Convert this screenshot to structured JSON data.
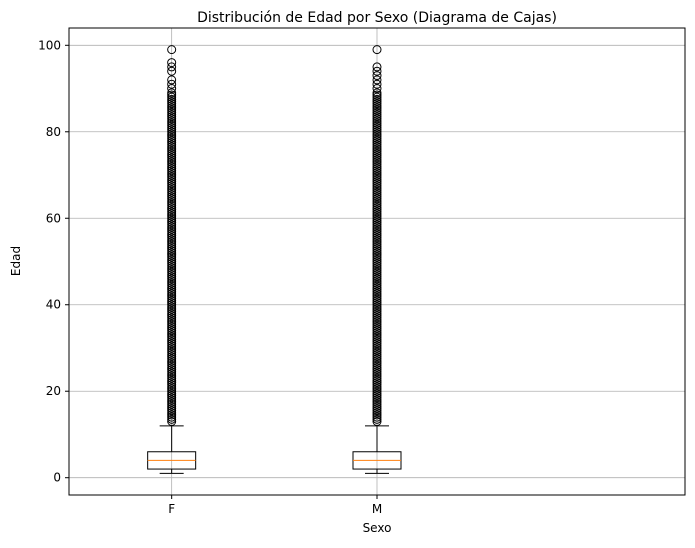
{
  "chart_data": {
    "type": "boxplot",
    "title": "Distribución de Edad por Sexo (Diagrama de Cajas)",
    "xlabel": "Sexo",
    "ylabel": "Edad",
    "categories": [
      "F",
      "M"
    ],
    "ylim": [
      -4,
      104
    ],
    "yticks": [
      0,
      20,
      40,
      60,
      80,
      100
    ],
    "grid": true,
    "boxes": [
      {
        "name": "F",
        "whisker_low": 1,
        "q1": 2,
        "median": 4,
        "q3": 6,
        "whisker_high": 12,
        "outlier_range": [
          13,
          89
        ],
        "sparse_outliers": [
          90,
          91,
          92,
          94,
          95,
          96,
          99
        ]
      },
      {
        "name": "M",
        "whisker_low": 1,
        "q1": 2,
        "median": 4,
        "q3": 6,
        "whisker_high": 12,
        "outlier_range": [
          13,
          89
        ],
        "sparse_outliers": [
          90,
          91,
          92,
          93,
          94,
          95,
          99
        ]
      }
    ],
    "colors": {
      "box": "#000000",
      "median": "#ff7f0e",
      "grid": "#b0b0b0",
      "outlier": "#000000"
    }
  }
}
